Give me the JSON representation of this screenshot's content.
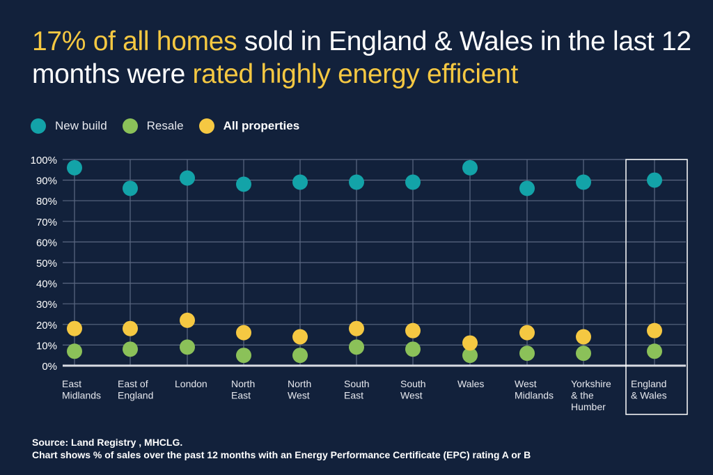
{
  "title": {
    "segments": [
      {
        "text": "17% of all homes",
        "highlight": true
      },
      {
        "text": " sold in England & Wales in the last 12 months were ",
        "highlight": false
      },
      {
        "text": "rated highly energy efficient",
        "highlight": true
      }
    ]
  },
  "colors": {
    "background": "#12213b",
    "new_build": "#13a3a8",
    "resale": "#8bc159",
    "all_properties": "#f5c842",
    "highlight_text": "#f5c842",
    "grid": "#5b6882"
  },
  "legend": [
    {
      "label": "New build",
      "series": "new_build",
      "bold": false
    },
    {
      "label": "Resale",
      "series": "resale",
      "bold": false
    },
    {
      "label": "All properties",
      "series": "all_properties",
      "bold": true
    }
  ],
  "footer": {
    "source": "Source: Land Registry , MHCLG.",
    "note": "Chart shows % of sales over the past 12 months with an Energy Performance Certificate (EPC) rating A or B"
  },
  "chart_data": {
    "type": "scatter",
    "title": "17% of all homes sold in England & Wales in the last 12 months were rated highly energy efficient",
    "xlabel": "",
    "ylabel": "",
    "ylim": [
      0,
      100
    ],
    "yticks": [
      "0%",
      "10%",
      "20%",
      "30%",
      "40%",
      "50%",
      "60%",
      "70%",
      "80%",
      "90%",
      "100%"
    ],
    "grid": true,
    "legend_position": "top-left",
    "categories": [
      [
        "East",
        "Midlands"
      ],
      [
        "East of",
        "England"
      ],
      [
        "London"
      ],
      [
        "North",
        "East"
      ],
      [
        "North",
        "West"
      ],
      [
        "South",
        "East"
      ],
      [
        "South",
        "West"
      ],
      [
        "Wales"
      ],
      [
        "West",
        "Midlands"
      ],
      [
        "Yorkshire",
        "& the",
        "Humber"
      ],
      [
        "England",
        "& Wales"
      ]
    ],
    "highlighted_category": "England & Wales",
    "series": [
      {
        "name": "New build",
        "key": "new_build",
        "values": [
          96,
          86,
          91,
          88,
          89,
          89,
          89,
          96,
          86,
          89,
          90
        ]
      },
      {
        "name": "Resale",
        "key": "resale",
        "values": [
          7,
          8,
          9,
          5,
          5,
          9,
          8,
          5,
          6,
          6,
          7
        ]
      },
      {
        "name": "All properties",
        "key": "all_properties",
        "values": [
          18,
          18,
          22,
          16,
          14,
          18,
          17,
          11,
          16,
          14,
          17
        ]
      }
    ]
  }
}
